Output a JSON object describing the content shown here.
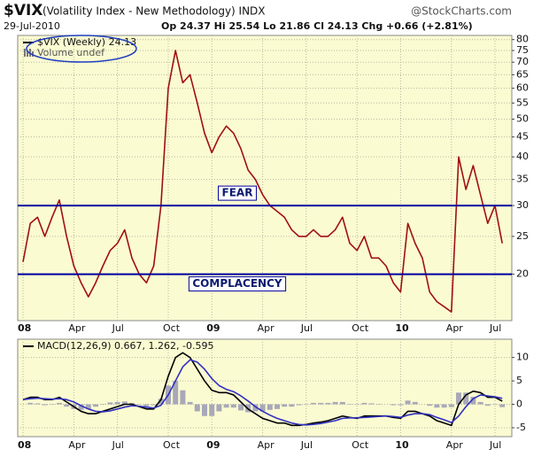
{
  "chart_data": [
    {
      "type": "line",
      "log_scale": true,
      "grid": true,
      "title": "$VIX",
      "subtitle": "(Volatility Index - New Methodology) INDX",
      "source": "@StockCharts.com",
      "date": "29-Jul-2010",
      "quote": "Op 24.37 Hi 25.54 Lo 21.86 Cl 24.13 Chg +0.66 (+2.81%)",
      "note": "Volume undef",
      "categories": [
        "08",
        null,
        null,
        null,
        null,
        null,
        null,
        "Apr",
        null,
        null,
        null,
        null,
        null,
        "Jul",
        null,
        null,
        null,
        null,
        null,
        null,
        "Oct",
        null,
        null,
        null,
        null,
        null,
        "09",
        null,
        null,
        null,
        null,
        null,
        null,
        "Apr",
        null,
        null,
        null,
        null,
        null,
        "Jul",
        null,
        null,
        null,
        null,
        null,
        null,
        "Oct",
        null,
        null,
        null,
        null,
        null,
        "10",
        null,
        null,
        null,
        null,
        null,
        null,
        "Apr",
        null,
        null,
        null,
        null,
        null,
        "Jul",
        null
      ],
      "series": [
        {
          "name": "$VIX (Weekly) 24.13",
          "color": "#a01010",
          "values": [
            21.5,
            27,
            28,
            25,
            28,
            31,
            25,
            21,
            19,
            17.5,
            19,
            21,
            23,
            24,
            26,
            22,
            20,
            19,
            21,
            30,
            60,
            75,
            62,
            65,
            55,
            46,
            41,
            45,
            48,
            46,
            42,
            37,
            35,
            32,
            30,
            29,
            28,
            26,
            25,
            25,
            26,
            25,
            25,
            26,
            28,
            24,
            23,
            25,
            22,
            22,
            21,
            19,
            18,
            27,
            24,
            22,
            18,
            17,
            16.5,
            16,
            40,
            33,
            38,
            32,
            27,
            30,
            24
          ]
        }
      ],
      "hlines": [
        {
          "value": 30,
          "label": "FEAR",
          "color": "#0000a0"
        },
        {
          "value": 20,
          "label": "COMPLACENCY",
          "color": "#0000a0"
        }
      ],
      "ylim": [
        15.2,
        82
      ],
      "yticks": [
        80,
        75,
        70,
        65,
        60,
        55,
        50,
        45,
        40,
        35,
        30,
        25,
        20
      ]
    },
    {
      "type": "line",
      "grid": true,
      "legend": "MACD(12,26,9) 0.667, 1.262, -0.595",
      "categories": [
        "08",
        null,
        null,
        null,
        null,
        null,
        null,
        "Apr",
        null,
        null,
        null,
        null,
        null,
        "Jul",
        null,
        null,
        null,
        null,
        null,
        null,
        "Oct",
        null,
        null,
        null,
        null,
        null,
        "09",
        null,
        null,
        null,
        null,
        null,
        null,
        "Apr",
        null,
        null,
        null,
        null,
        null,
        "Jul",
        null,
        null,
        null,
        null,
        null,
        null,
        "Oct",
        null,
        null,
        null,
        null,
        null,
        "10",
        null,
        null,
        null,
        null,
        null,
        null,
        "Apr",
        null,
        null,
        null,
        null,
        null,
        "Jul",
        null
      ],
      "series": [
        {
          "type": "bar",
          "color": "#a8a8b8",
          "values": [
            0,
            0.3,
            0.2,
            -0.2,
            -0.1,
            0.3,
            -0.5,
            -1,
            -1.2,
            -1,
            -0.5,
            0.1,
            0.4,
            0.5,
            0.6,
            0.3,
            -0.1,
            -0.4,
            -0.2,
            1.2,
            4,
            5,
            3,
            0.5,
            -1.5,
            -2.5,
            -2.5,
            -1.5,
            -0.7,
            -0.7,
            -1.3,
            -1.7,
            -1.5,
            -1.5,
            -1.2,
            -1,
            -0.5,
            -0.5,
            -0.2,
            0.1,
            0.3,
            0.3,
            0.3,
            0.5,
            0.5,
            0.1,
            -0.1,
            0.3,
            0.2,
            0.1,
            0,
            -0.2,
            -0.2,
            0.8,
            0.5,
            0,
            -0.3,
            -0.7,
            -0.7,
            -0.6,
            2.5,
            2.5,
            1.6,
            0.5,
            -0.3,
            -0.1,
            -0.595
          ]
        },
        {
          "type": "line",
          "color": "#000000",
          "values": [
            1,
            1.5,
            1.5,
            1,
            1,
            1.5,
            0.5,
            -0.5,
            -1.5,
            -2,
            -2,
            -1.5,
            -1,
            -0.5,
            0,
            0,
            -0.5,
            -1,
            -1,
            1,
            6,
            10,
            11,
            10,
            7.5,
            5,
            3,
            2.5,
            2.5,
            2,
            0.5,
            -1,
            -2,
            -3,
            -3.5,
            -4,
            -4,
            -4.5,
            -4.5,
            -4.3,
            -4,
            -3.8,
            -3.5,
            -3,
            -2.5,
            -2.8,
            -3,
            -2.5,
            -2.5,
            -2.5,
            -2.5,
            -2.8,
            -3,
            -1.5,
            -1.5,
            -2,
            -2.5,
            -3.5,
            -4,
            -4.5,
            0,
            2,
            2.8,
            2.5,
            1.5,
            1.5,
            0.667
          ]
        },
        {
          "type": "line",
          "color": "#3030c0",
          "values": [
            1,
            1.2,
            1.3,
            1.2,
            1.1,
            1.2,
            1,
            0.5,
            -0.3,
            -1,
            -1.5,
            -1.6,
            -1.4,
            -1,
            -0.6,
            -0.3,
            -0.4,
            -0.6,
            -0.8,
            -0.2,
            2,
            5,
            8,
            9.5,
            9,
            7.5,
            5.5,
            4,
            3.2,
            2.7,
            1.8,
            0.7,
            -0.5,
            -1.5,
            -2.3,
            -3,
            -3.5,
            -4,
            -4.3,
            -4.4,
            -4.3,
            -4.1,
            -3.8,
            -3.5,
            -3,
            -2.9,
            -2.9,
            -2.8,
            -2.7,
            -2.6,
            -2.5,
            -2.6,
            -2.8,
            -2.3,
            -2,
            -2,
            -2.2,
            -2.8,
            -3.3,
            -3.9,
            -2.5,
            -0.5,
            1.2,
            2,
            1.8,
            1.6,
            1.262
          ]
        }
      ],
      "ylim": [
        -6.9,
        13.9
      ],
      "yticks": [
        10,
        5,
        0,
        -5
      ]
    }
  ]
}
